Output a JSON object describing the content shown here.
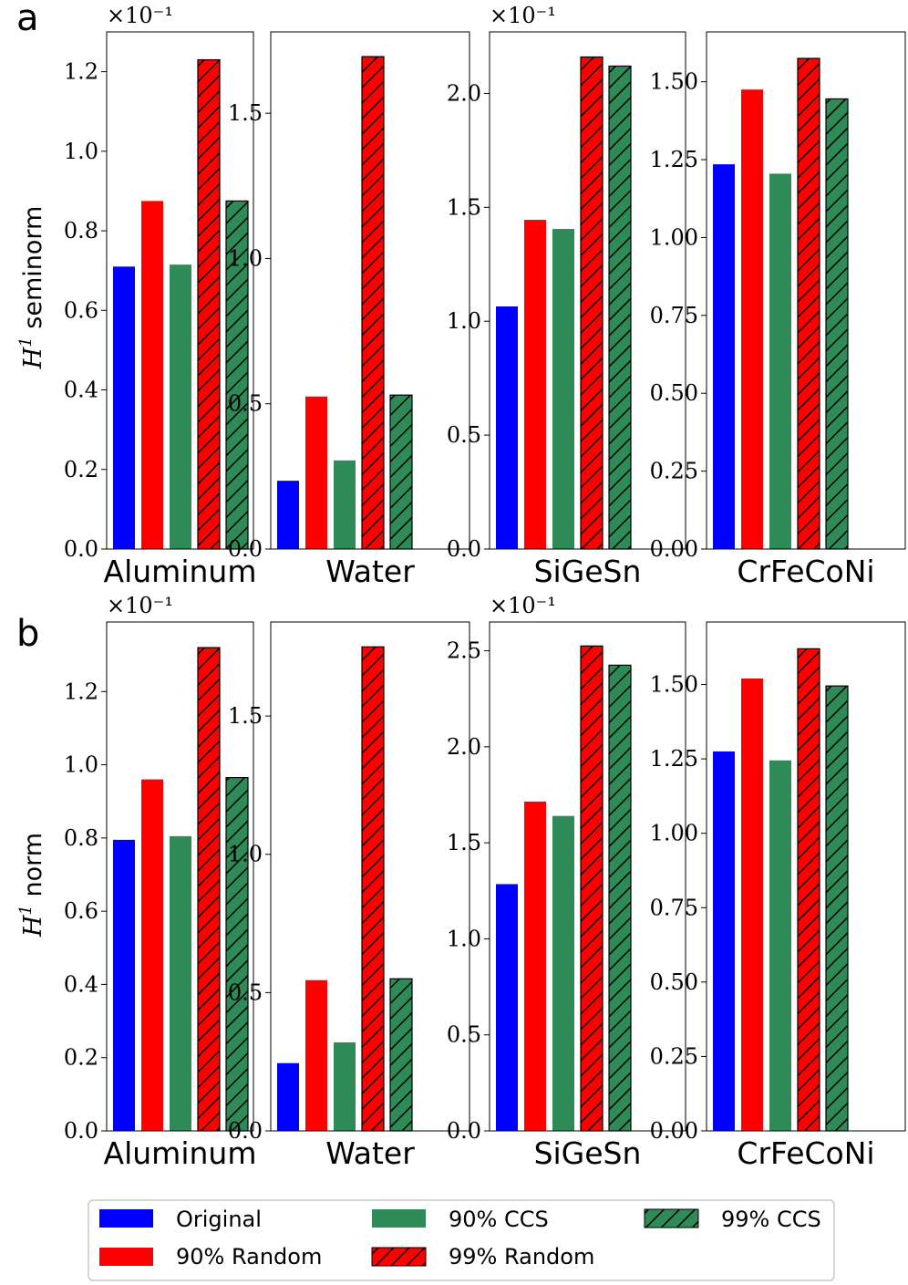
{
  "chart_data": {
    "type": "bar",
    "categories": [
      "Original",
      "90% Random",
      "90% CCS",
      "99% Random",
      "99% CCS"
    ],
    "category_colors": [
      "#0000ff",
      "#ff0000",
      "#2e8b57",
      "#ff0000",
      "#2e8b57"
    ],
    "category_hatched": [
      false,
      false,
      false,
      true,
      true
    ],
    "legend": {
      "placement": "bottom",
      "entries": [
        {
          "label": "Original",
          "color": "#0000ff",
          "hatched": false
        },
        {
          "label": "90% CCS",
          "color": "#2e8b57",
          "hatched": false
        },
        {
          "label": "99% CCS",
          "color": "#2e8b57",
          "hatched": true
        },
        {
          "label": "90% Random",
          "color": "#ff0000",
          "hatched": false
        },
        {
          "label": "99% Random",
          "color": "#ff0000",
          "hatched": true
        }
      ]
    },
    "rows": [
      {
        "panel": "a",
        "ylabel_main": "H",
        "ylabel_sup": "1",
        "ylabel_rest": " seminorm",
        "subplots": [
          {
            "xlabel": "Aluminum",
            "multiplier": "×10⁻¹",
            "ylim": [
              0,
              1.3
            ],
            "ticks": [
              0,
              0.2,
              0.4,
              0.6,
              0.8,
              1.0,
              1.2
            ],
            "tick_labels": [
              "0.0",
              "0.2",
              "0.4",
              "0.6",
              "0.8",
              "1.0",
              "1.2"
            ],
            "values": [
              0.71,
              0.875,
              0.715,
              1.23,
              0.875
            ]
          },
          {
            "xlabel": "Water",
            "multiplier": "",
            "ylim": [
              0,
              1.78
            ],
            "ticks": [
              0,
              0.5,
              1.0,
              1.5
            ],
            "tick_labels": [
              "0.0",
              "0.5",
              "1.0",
              "1.5"
            ],
            "values": [
              0.235,
              0.525,
              0.305,
              1.695,
              0.53
            ]
          },
          {
            "xlabel": "SiGeSn",
            "multiplier": "×10⁻¹",
            "ylim": [
              0,
              2.27
            ],
            "ticks": [
              0,
              0.5,
              1.0,
              1.5,
              2.0
            ],
            "tick_labels": [
              "0.0",
              "0.5",
              "1.0",
              "1.5",
              "2.0"
            ],
            "values": [
              1.065,
              1.445,
              1.405,
              2.16,
              2.12
            ]
          },
          {
            "xlabel": "CrFeCoNi",
            "multiplier": "",
            "ylim": [
              0,
              1.66
            ],
            "ticks": [
              0,
              0.25,
              0.5,
              0.75,
              1.0,
              1.25,
              1.5
            ],
            "tick_labels": [
              "0.00",
              "0.25",
              "0.50",
              "0.75",
              "1.00",
              "1.25",
              "1.50"
            ],
            "values": [
              1.235,
              1.475,
              1.205,
              1.575,
              1.445
            ]
          }
        ]
      },
      {
        "panel": "b",
        "ylabel_main": "H",
        "ylabel_sup": "1",
        "ylabel_rest": " norm",
        "subplots": [
          {
            "xlabel": "Aluminum",
            "multiplier": "×10⁻¹",
            "ylim": [
              0,
              1.39
            ],
            "ticks": [
              0,
              0.2,
              0.4,
              0.6,
              0.8,
              1.0,
              1.2
            ],
            "tick_labels": [
              "0.0",
              "0.2",
              "0.4",
              "0.6",
              "0.8",
              "1.0",
              "1.2"
            ],
            "values": [
              0.795,
              0.96,
              0.805,
              1.32,
              0.965
            ]
          },
          {
            "xlabel": "Water",
            "multiplier": "",
            "ylim": [
              0,
              1.84
            ],
            "ticks": [
              0,
              0.5,
              1.0,
              1.5
            ],
            "tick_labels": [
              "0.0",
              "0.5",
              "1.0",
              "1.5"
            ],
            "values": [
              0.245,
              0.545,
              0.32,
              1.75,
              0.55
            ]
          },
          {
            "xlabel": "SiGeSn",
            "multiplier": "×10⁻¹",
            "ylim": [
              0,
              2.65
            ],
            "ticks": [
              0,
              0.5,
              1.0,
              1.5,
              2.0,
              2.5
            ],
            "tick_labels": [
              "0.0",
              "0.5",
              "1.0",
              "1.5",
              "2.0",
              "2.5"
            ],
            "values": [
              1.285,
              1.715,
              1.64,
              2.525,
              2.425
            ]
          },
          {
            "xlabel": "CrFeCoNi",
            "multiplier": "",
            "ylim": [
              0,
              1.71
            ],
            "ticks": [
              0,
              0.25,
              0.5,
              0.75,
              1.0,
              1.25,
              1.5
            ],
            "tick_labels": [
              "0.00",
              "0.25",
              "0.50",
              "0.75",
              "1.00",
              "1.25",
              "1.50"
            ],
            "values": [
              1.275,
              1.52,
              1.245,
              1.62,
              1.495
            ]
          }
        ]
      }
    ]
  }
}
